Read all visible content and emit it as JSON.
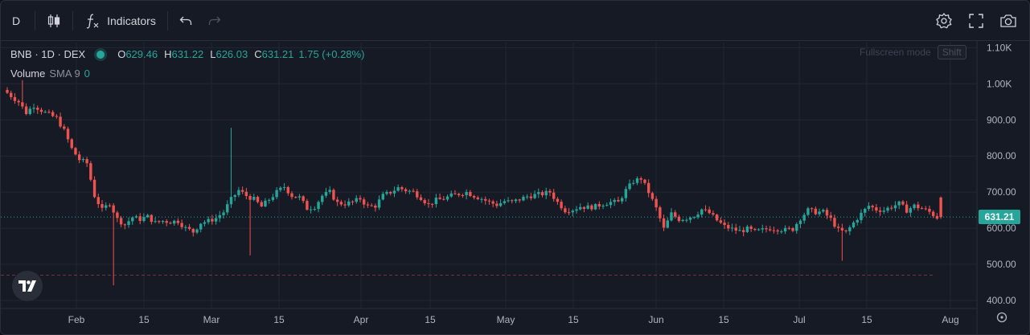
{
  "toolbar": {
    "interval": "D",
    "indicators_label": "Indicators"
  },
  "legend": {
    "title": "BNB · 1D · DEX",
    "o_key": "O",
    "o_val": "629.46",
    "h_key": "H",
    "h_val": "631.22",
    "l_key": "L",
    "l_val": "626.03",
    "c_key": "C",
    "c_val": "631.21",
    "change": "1.75 (+0.28%)",
    "volume_label": "Volume",
    "sma_label": "SMA 9",
    "sma_value": "0"
  },
  "fullscreen_hint": {
    "label": "Fullscreen mode",
    "key": "Shift"
  },
  "current_price": "631.21",
  "colors": {
    "up": "#26a69a",
    "down": "#ef5350",
    "background": "#161a25",
    "grid": "#232734",
    "text": "#b2b5be"
  },
  "chart_data": {
    "type": "candlestick",
    "title": "BNB · 1D · DEX",
    "y_ticks": [
      "400.00",
      "500.00",
      "600.00",
      "700.00",
      "800.00",
      "900.00",
      "1.00K",
      "1.10K"
    ],
    "ylim": [
      385,
      1120
    ],
    "x_ticks": [
      "Feb",
      "15",
      "Mar",
      "15",
      "Apr",
      "15",
      "May",
      "15",
      "Jun",
      "15",
      "Jul",
      "15",
      "Aug"
    ],
    "grid": true,
    "last_price": 631.21,
    "keypoints_close": [
      [
        0,
        975
      ],
      [
        3,
        950
      ],
      [
        5,
        920
      ],
      [
        7,
        940
      ],
      [
        10,
        920
      ],
      [
        13,
        905
      ],
      [
        15,
        870
      ],
      [
        17,
        820
      ],
      [
        19,
        790
      ],
      [
        21,
        780
      ],
      [
        23,
        690
      ],
      [
        25,
        650
      ],
      [
        27,
        670
      ],
      [
        29,
        625
      ],
      [
        31,
        610
      ],
      [
        33,
        630
      ],
      [
        35,
        625
      ],
      [
        37,
        632
      ],
      [
        39,
        615
      ],
      [
        41,
        620
      ],
      [
        43,
        618
      ],
      [
        45,
        620
      ],
      [
        47,
        600
      ],
      [
        49,
        590
      ],
      [
        51,
        615
      ],
      [
        53,
        620
      ],
      [
        55,
        628
      ],
      [
        57,
        645
      ],
      [
        59,
        680
      ],
      [
        61,
        705
      ],
      [
        63,
        690
      ],
      [
        65,
        680
      ],
      [
        67,
        660
      ],
      [
        69,
        680
      ],
      [
        71,
        700
      ],
      [
        73,
        715
      ],
      [
        75,
        690
      ],
      [
        77,
        685
      ],
      [
        79,
        655
      ],
      [
        81,
        660
      ],
      [
        83,
        690
      ],
      [
        85,
        700
      ],
      [
        87,
        670
      ],
      [
        89,
        668
      ],
      [
        91,
        672
      ],
      [
        93,
        682
      ],
      [
        95,
        660
      ],
      [
        97,
        662
      ],
      [
        99,
        690
      ],
      [
        101,
        700
      ],
      [
        103,
        712
      ],
      [
        105,
        705
      ],
      [
        107,
        700
      ],
      [
        109,
        685
      ],
      [
        111,
        665
      ],
      [
        113,
        678
      ],
      [
        115,
        682
      ],
      [
        117,
        690
      ],
      [
        119,
        695
      ],
      [
        121,
        700
      ],
      [
        123,
        690
      ],
      [
        125,
        682
      ],
      [
        127,
        672
      ],
      [
        129,
        665
      ],
      [
        131,
        675
      ],
      [
        133,
        672
      ],
      [
        135,
        680
      ],
      [
        137,
        688
      ],
      [
        139,
        692
      ],
      [
        141,
        695
      ],
      [
        143,
        700
      ],
      [
        145,
        672
      ],
      [
        147,
        650
      ],
      [
        149,
        652
      ],
      [
        151,
        660
      ],
      [
        153,
        658
      ],
      [
        155,
        660
      ],
      [
        157,
        668
      ],
      [
        159,
        672
      ],
      [
        161,
        672
      ],
      [
        163,
        705
      ],
      [
        165,
        730
      ],
      [
        167,
        738
      ],
      [
        169,
        700
      ],
      [
        171,
        655
      ],
      [
        173,
        598
      ],
      [
        175,
        640
      ],
      [
        177,
        625
      ],
      [
        179,
        628
      ],
      [
        181,
        635
      ],
      [
        183,
        652
      ],
      [
        185,
        642
      ],
      [
        187,
        622
      ],
      [
        189,
        605
      ],
      [
        191,
        598
      ],
      [
        193,
        592
      ],
      [
        195,
        598
      ],
      [
        197,
        590
      ],
      [
        199,
        595
      ],
      [
        201,
        600
      ],
      [
        203,
        598
      ],
      [
        205,
        595
      ],
      [
        207,
        598
      ],
      [
        209,
        628
      ],
      [
        211,
        650
      ],
      [
        213,
        645
      ],
      [
        215,
        645
      ],
      [
        217,
        625
      ],
      [
        219,
        595
      ],
      [
        221,
        588
      ],
      [
        223,
        615
      ],
      [
        225,
        640
      ],
      [
        227,
        662
      ],
      [
        229,
        652
      ],
      [
        231,
        650
      ],
      [
        233,
        660
      ],
      [
        235,
        668
      ],
      [
        237,
        650
      ],
      [
        239,
        662
      ],
      [
        241,
        655
      ],
      [
        243,
        645
      ],
      [
        245,
        630
      ]
    ],
    "spikes": [
      {
        "day": 28,
        "low": 442
      },
      {
        "day": 59,
        "high": 878
      },
      {
        "day": 64,
        "low": 525
      },
      {
        "day": 220,
        "low": 510
      },
      {
        "day": 4,
        "high": 1010
      }
    ]
  }
}
